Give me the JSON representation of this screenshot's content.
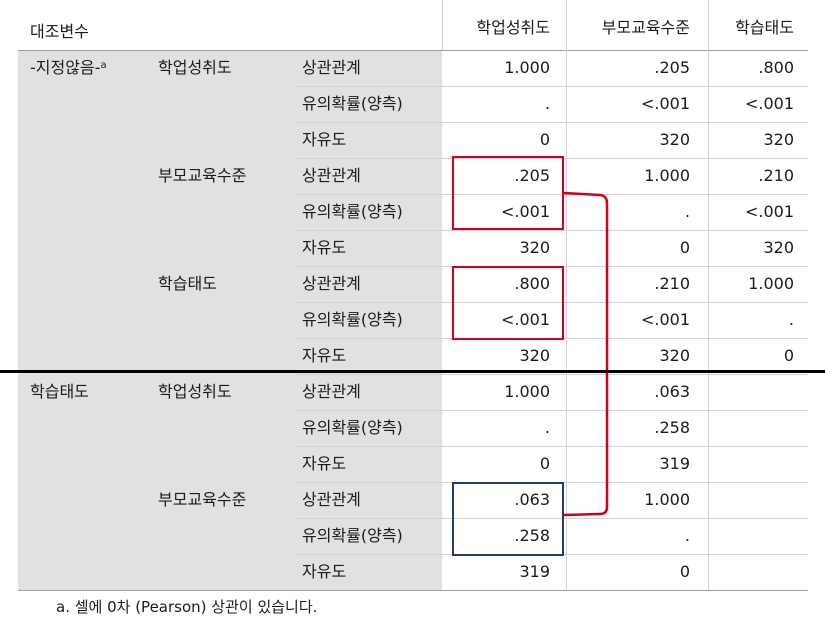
{
  "header": {
    "control_variable": "대조변수",
    "columns": [
      "학업성취도",
      "부모교육수준",
      "학습태도"
    ]
  },
  "sections": [
    {
      "control_label": "-지정않음-",
      "control_sup": "a",
      "groups": [
        {
          "variable": "학업성취도",
          "rows": [
            {
              "stat": "상관관계",
              "values": [
                "1.000",
                ".205",
                ".800"
              ]
            },
            {
              "stat": "유의확률(양측)",
              "values": [
                ".",
                "<.001",
                "<.001"
              ]
            },
            {
              "stat": "자유도",
              "values": [
                "0",
                "320",
                "320"
              ]
            }
          ]
        },
        {
          "variable": "부모교육수준",
          "rows": [
            {
              "stat": "상관관계",
              "values": [
                ".205",
                "1.000",
                ".210"
              ]
            },
            {
              "stat": "유의확률(양측)",
              "values": [
                "<.001",
                ".",
                "<.001"
              ]
            },
            {
              "stat": "자유도",
              "values": [
                "320",
                "0",
                "320"
              ]
            }
          ]
        },
        {
          "variable": "학습태도",
          "rows": [
            {
              "stat": "상관관계",
              "values": [
                ".800",
                ".210",
                "1.000"
              ]
            },
            {
              "stat": "유의확률(양측)",
              "values": [
                "<.001",
                "<.001",
                "."
              ]
            },
            {
              "stat": "자유도",
              "values": [
                "320",
                "320",
                "0"
              ]
            }
          ]
        }
      ]
    },
    {
      "control_label": "학습태도",
      "control_sup": "",
      "groups": [
        {
          "variable": "학업성취도",
          "rows": [
            {
              "stat": "상관관계",
              "values": [
                "1.000",
                ".063",
                ""
              ]
            },
            {
              "stat": "유의확률(양측)",
              "values": [
                ".",
                ".258",
                ""
              ]
            },
            {
              "stat": "자유도",
              "values": [
                "0",
                "319",
                ""
              ]
            }
          ]
        },
        {
          "variable": "부모교육수준",
          "rows": [
            {
              "stat": "상관관계",
              "values": [
                ".063",
                "1.000",
                ""
              ]
            },
            {
              "stat": "유의확률(양측)",
              "values": [
                ".258",
                ".",
                ""
              ]
            },
            {
              "stat": "자유도",
              "values": [
                "319",
                "0",
                ""
              ]
            }
          ]
        }
      ]
    }
  ],
  "footnote": "a. 셀에 0차 (Pearson) 상관이 있습니다.",
  "colors": {
    "label_bg": "#e1e1e1",
    "grid": "#cfd3d8",
    "highlight_red": "#d0021b",
    "highlight_blue": "#1f3f66",
    "divider": "#000000"
  }
}
